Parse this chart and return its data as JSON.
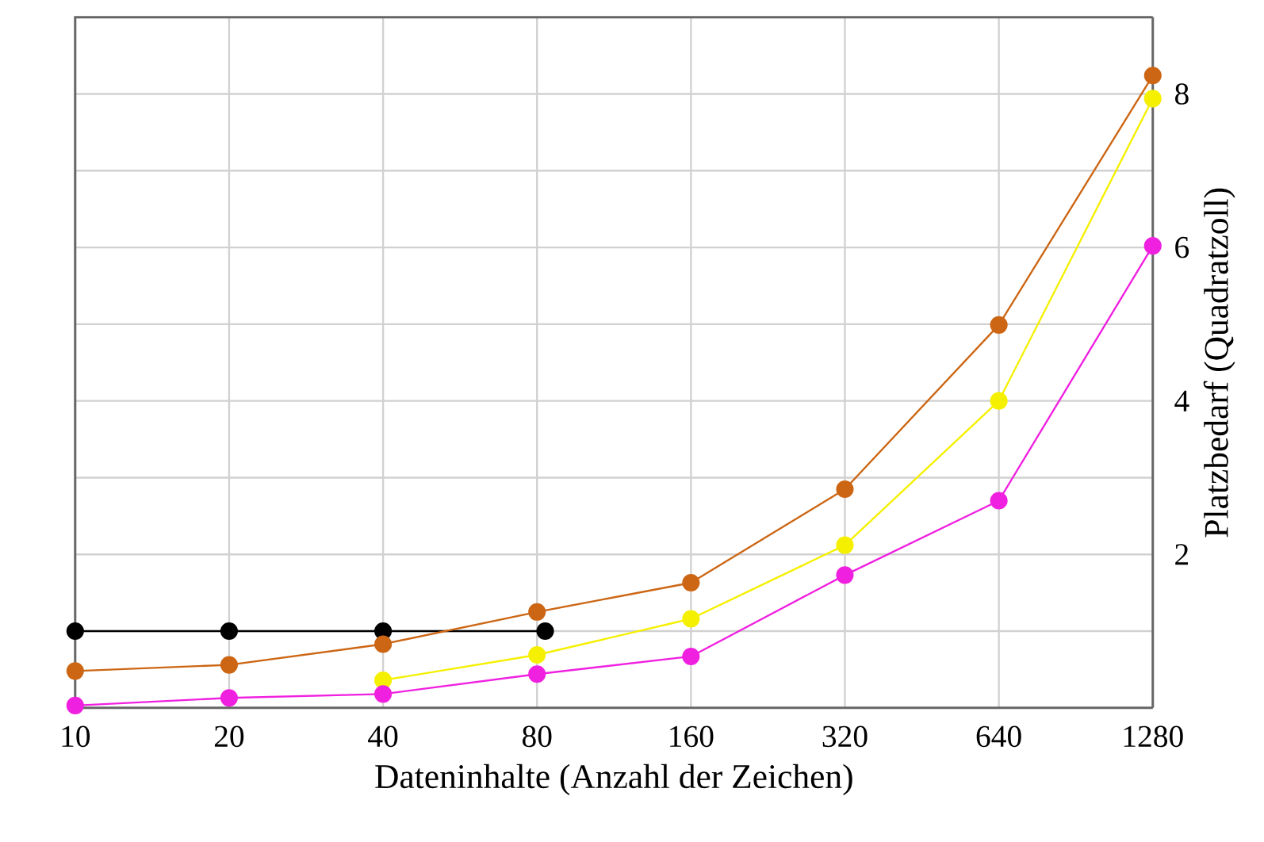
{
  "chart_data": {
    "type": "line",
    "xlabel": "Dateninhalte (Anzahl der Zeichen)",
    "ylabel": "Platzbedarf (Quadratzoll)",
    "log": "x",
    "grid": true,
    "marker": "circle",
    "line_style": "solid",
    "xlim": [
      10,
      1280
    ],
    "xticks": [
      10,
      20,
      40,
      80,
      160,
      320,
      640,
      1280
    ],
    "ylim": [
      0,
      9
    ],
    "yticks": [
      {
        "value": 1,
        "label": null
      },
      2,
      {
        "value": 3,
        "label": null
      },
      4,
      {
        "value": 5,
        "label": null
      },
      6,
      {
        "value": 7,
        "label": null
      },
      8
    ],
    "series": [
      {
        "color": "#000000",
        "x": [
          10,
          20,
          40,
          83
        ],
        "values": [
          1.0,
          1.0,
          1.0,
          1.0
        ]
      },
      {
        "color": "#cc6614",
        "x": [
          10,
          20,
          40,
          80,
          160,
          320,
          640,
          1280
        ],
        "values": [
          0.48,
          0.56,
          0.83,
          1.25,
          1.63,
          2.85,
          4.99,
          8.24
        ]
      },
      {
        "color": "#f5f000",
        "x": [
          40,
          80,
          160,
          320,
          640,
          1280
        ],
        "values": [
          0.36,
          0.69,
          1.16,
          2.12,
          4.0,
          7.94
        ]
      },
      {
        "color": "#f020e0",
        "x": [
          10,
          20,
          40,
          80,
          160,
          320,
          640,
          1280
        ],
        "values": [
          0.03,
          0.13,
          0.18,
          0.44,
          0.67,
          1.73,
          2.7,
          6.02
        ]
      }
    ]
  }
}
